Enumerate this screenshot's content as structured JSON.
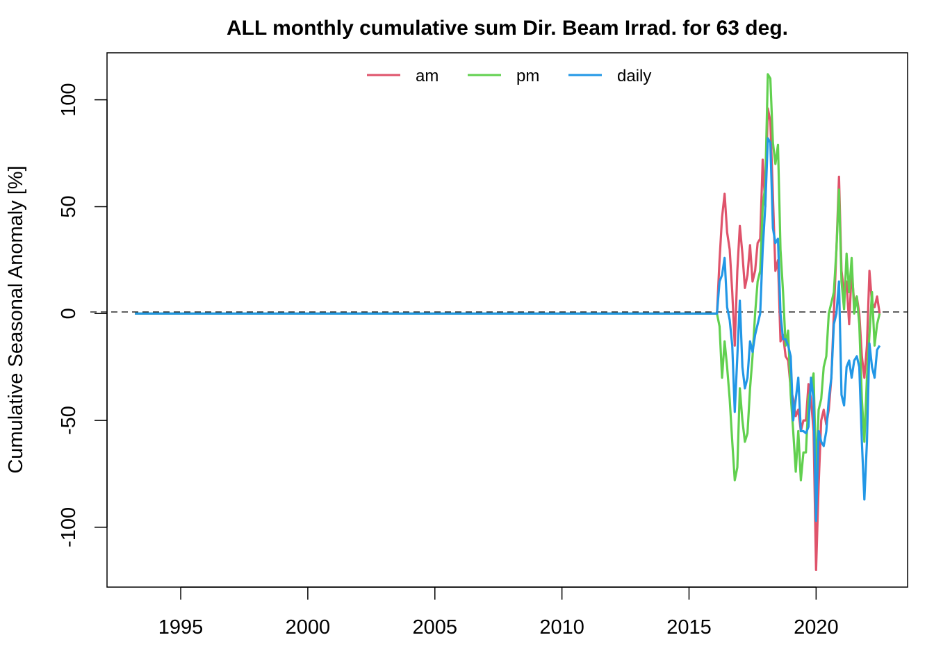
{
  "chart_data": {
    "type": "line",
    "title": "ALL monthly cumulative sum  Dir. Beam Irrad. for 63 deg.",
    "xlabel": "",
    "ylabel": "Cumulative Seasonal Anomaly [%]",
    "xlim": [
      1992.1,
      2023.6
    ],
    "ylim": [
      -128,
      122
    ],
    "xticks": [
      1995,
      2000,
      2005,
      2010,
      2015,
      2020
    ],
    "yticks": [
      -100,
      -50,
      0,
      50,
      100
    ],
    "grid": false,
    "legend_position": "top-center",
    "reference_line": {
      "y": 0,
      "style": "dashed"
    },
    "series": [
      {
        "name": "am",
        "color": "#DF536B",
        "points": [
          [
            1993.2,
            0
          ],
          [
            2016.1,
            0
          ],
          [
            2016.2,
            25
          ],
          [
            2016.3,
            45
          ],
          [
            2016.4,
            56
          ],
          [
            2016.5,
            38
          ],
          [
            2016.6,
            30
          ],
          [
            2016.7,
            10
          ],
          [
            2016.8,
            -15
          ],
          [
            2016.9,
            20
          ],
          [
            2017.0,
            41
          ],
          [
            2017.1,
            28
          ],
          [
            2017.2,
            12
          ],
          [
            2017.3,
            18
          ],
          [
            2017.4,
            32
          ],
          [
            2017.5,
            15
          ],
          [
            2017.6,
            20
          ],
          [
            2017.7,
            33
          ],
          [
            2017.8,
            35
          ],
          [
            2017.9,
            72
          ],
          [
            2018.0,
            50
          ],
          [
            2018.1,
            96
          ],
          [
            2018.2,
            90
          ],
          [
            2018.3,
            55
          ],
          [
            2018.4,
            20
          ],
          [
            2018.5,
            25
          ],
          [
            2018.6,
            -13
          ],
          [
            2018.7,
            -10
          ],
          [
            2018.8,
            -20
          ],
          [
            2018.9,
            -22
          ],
          [
            2019.0,
            -35
          ],
          [
            2019.1,
            -40
          ],
          [
            2019.2,
            -48
          ],
          [
            2019.3,
            -45
          ],
          [
            2019.4,
            -55
          ],
          [
            2019.5,
            -50
          ],
          [
            2019.6,
            -50
          ],
          [
            2019.7,
            -33
          ],
          [
            2019.8,
            -40
          ],
          [
            2019.9,
            -55
          ],
          [
            2020.0,
            -120
          ],
          [
            2020.1,
            -80
          ],
          [
            2020.2,
            -50
          ],
          [
            2020.3,
            -45
          ],
          [
            2020.4,
            -52
          ],
          [
            2020.5,
            -45
          ],
          [
            2020.6,
            -30
          ],
          [
            2020.7,
            0
          ],
          [
            2020.8,
            30
          ],
          [
            2020.9,
            64
          ],
          [
            2021.0,
            20
          ],
          [
            2021.1,
            10
          ],
          [
            2021.2,
            15
          ],
          [
            2021.3,
            -5
          ],
          [
            2021.4,
            20
          ],
          [
            2021.5,
            5
          ],
          [
            2021.6,
            8
          ],
          [
            2021.7,
            0
          ],
          [
            2021.8,
            -20
          ],
          [
            2021.9,
            -30
          ],
          [
            2022.0,
            -15
          ],
          [
            2022.1,
            20
          ],
          [
            2022.2,
            5
          ],
          [
            2022.3,
            3
          ],
          [
            2022.4,
            8
          ],
          [
            2022.5,
            0
          ]
        ]
      },
      {
        "name": "pm",
        "color": "#61D04F",
        "points": [
          [
            1993.2,
            0
          ],
          [
            2016.1,
            0
          ],
          [
            2016.2,
            -6
          ],
          [
            2016.3,
            -30
          ],
          [
            2016.4,
            -13
          ],
          [
            2016.5,
            -25
          ],
          [
            2016.6,
            -40
          ],
          [
            2016.7,
            -60
          ],
          [
            2016.8,
            -78
          ],
          [
            2016.9,
            -72
          ],
          [
            2017.0,
            -35
          ],
          [
            2017.1,
            -50
          ],
          [
            2017.2,
            -60
          ],
          [
            2017.3,
            -56
          ],
          [
            2017.4,
            -35
          ],
          [
            2017.5,
            -20
          ],
          [
            2017.6,
            0
          ],
          [
            2017.7,
            15
          ],
          [
            2017.8,
            20
          ],
          [
            2017.9,
            50
          ],
          [
            2018.0,
            60
          ],
          [
            2018.1,
            112
          ],
          [
            2018.2,
            110
          ],
          [
            2018.3,
            80
          ],
          [
            2018.4,
            70
          ],
          [
            2018.5,
            79
          ],
          [
            2018.6,
            30
          ],
          [
            2018.7,
            10
          ],
          [
            2018.8,
            -15
          ],
          [
            2018.9,
            -8
          ],
          [
            2019.0,
            -38
          ],
          [
            2019.1,
            -55
          ],
          [
            2019.2,
            -74
          ],
          [
            2019.3,
            -55
          ],
          [
            2019.4,
            -78
          ],
          [
            2019.5,
            -65
          ],
          [
            2019.6,
            -65
          ],
          [
            2019.7,
            -40
          ],
          [
            2019.8,
            -35
          ],
          [
            2019.9,
            -28
          ],
          [
            2020.0,
            -75
          ],
          [
            2020.1,
            -45
          ],
          [
            2020.2,
            -40
          ],
          [
            2020.3,
            -25
          ],
          [
            2020.4,
            -20
          ],
          [
            2020.5,
            0
          ],
          [
            2020.6,
            5
          ],
          [
            2020.7,
            10
          ],
          [
            2020.8,
            30
          ],
          [
            2020.9,
            58
          ],
          [
            2021.0,
            15
          ],
          [
            2021.1,
            2
          ],
          [
            2021.2,
            28
          ],
          [
            2021.3,
            10
          ],
          [
            2021.4,
            26
          ],
          [
            2021.5,
            0
          ],
          [
            2021.6,
            8
          ],
          [
            2021.7,
            -5
          ],
          [
            2021.8,
            -40
          ],
          [
            2021.9,
            -60
          ],
          [
            2022.0,
            -30
          ],
          [
            2022.1,
            -10
          ],
          [
            2022.2,
            10
          ],
          [
            2022.3,
            -15
          ],
          [
            2022.4,
            -5
          ],
          [
            2022.5,
            0
          ]
        ]
      },
      {
        "name": "daily",
        "color": "#2297E6",
        "points": [
          [
            1993.2,
            0
          ],
          [
            2016.1,
            0
          ],
          [
            2016.2,
            15
          ],
          [
            2016.3,
            18
          ],
          [
            2016.4,
            26
          ],
          [
            2016.5,
            3
          ],
          [
            2016.6,
            -3
          ],
          [
            2016.7,
            -15
          ],
          [
            2016.8,
            -46
          ],
          [
            2016.9,
            -20
          ],
          [
            2017.0,
            6
          ],
          [
            2017.1,
            -25
          ],
          [
            2017.2,
            -35
          ],
          [
            2017.3,
            -30
          ],
          [
            2017.4,
            -13
          ],
          [
            2017.5,
            -18
          ],
          [
            2017.6,
            -10
          ],
          [
            2017.7,
            -5
          ],
          [
            2017.8,
            0
          ],
          [
            2017.9,
            30
          ],
          [
            2018.0,
            50
          ],
          [
            2018.1,
            82
          ],
          [
            2018.2,
            80
          ],
          [
            2018.3,
            40
          ],
          [
            2018.4,
            33
          ],
          [
            2018.5,
            35
          ],
          [
            2018.6,
            0
          ],
          [
            2018.7,
            -12
          ],
          [
            2018.8,
            -12
          ],
          [
            2018.9,
            -15
          ],
          [
            2019.0,
            -20
          ],
          [
            2019.1,
            -50
          ],
          [
            2019.2,
            -40
          ],
          [
            2019.3,
            -30
          ],
          [
            2019.4,
            -55
          ],
          [
            2019.5,
            -55
          ],
          [
            2019.6,
            -56
          ],
          [
            2019.7,
            -53
          ],
          [
            2019.8,
            -30
          ],
          [
            2019.9,
            -40
          ],
          [
            2020.0,
            -97
          ],
          [
            2020.1,
            -55
          ],
          [
            2020.2,
            -60
          ],
          [
            2020.3,
            -62
          ],
          [
            2020.4,
            -55
          ],
          [
            2020.5,
            -40
          ],
          [
            2020.6,
            -30
          ],
          [
            2020.7,
            -5
          ],
          [
            2020.8,
            0
          ],
          [
            2020.9,
            15
          ],
          [
            2021.0,
            -38
          ],
          [
            2021.1,
            -43
          ],
          [
            2021.2,
            -25
          ],
          [
            2021.3,
            -22
          ],
          [
            2021.4,
            -30
          ],
          [
            2021.5,
            -22
          ],
          [
            2021.6,
            -20
          ],
          [
            2021.7,
            -25
          ],
          [
            2021.8,
            -60
          ],
          [
            2021.9,
            -87
          ],
          [
            2022.0,
            -60
          ],
          [
            2022.1,
            -14
          ],
          [
            2022.2,
            -25
          ],
          [
            2022.3,
            -30
          ],
          [
            2022.4,
            -17
          ],
          [
            2022.5,
            -15
          ]
        ]
      }
    ]
  }
}
